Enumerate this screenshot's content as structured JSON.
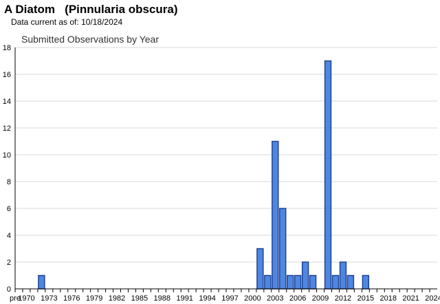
{
  "header": {
    "common_name": "A Diatom",
    "scientific_name": "(Pinnularia obscura)",
    "data_current_label": "Data current as of:",
    "data_current_date": "10/18/2024"
  },
  "colors": {
    "bar_fill": "#4f86e0",
    "bar_stroke": "#1a3f8f",
    "grid": "#d9d9d9",
    "axis": "#000000"
  },
  "chart_data": {
    "type": "bar",
    "title": "Submitted Observations by Year",
    "xlabel": "",
    "ylabel": "",
    "ylim": [
      0,
      18
    ],
    "y_ticks": [
      0,
      2,
      4,
      6,
      8,
      10,
      12,
      14,
      16,
      18
    ],
    "grid": true,
    "x_tick_labels": [
      "pre",
      "1970",
      "1973",
      "1976",
      "1979",
      "1982",
      "1985",
      "1988",
      "1991",
      "1994",
      "1997",
      "2000",
      "2003",
      "2006",
      "2009",
      "2012",
      "2015",
      "2018",
      "2021",
      "2024"
    ],
    "categories": [
      "pre",
      "1970",
      "1971",
      "1972",
      "1973",
      "1974",
      "1975",
      "1976",
      "1977",
      "1978",
      "1979",
      "1980",
      "1981",
      "1982",
      "1983",
      "1984",
      "1985",
      "1986",
      "1987",
      "1988",
      "1989",
      "1990",
      "1991",
      "1992",
      "1993",
      "1994",
      "1995",
      "1996",
      "1997",
      "1998",
      "1999",
      "2000",
      "2001",
      "2002",
      "2003",
      "2004",
      "2005",
      "2006",
      "2007",
      "2008",
      "2009",
      "2010",
      "2011",
      "2012",
      "2013",
      "2014",
      "2015",
      "2016",
      "2017",
      "2018",
      "2019",
      "2020",
      "2021",
      "2022",
      "2023",
      "2024"
    ],
    "values": [
      0,
      0,
      0,
      1,
      0,
      0,
      0,
      0,
      0,
      0,
      0,
      0,
      0,
      0,
      0,
      0,
      0,
      0,
      0,
      0,
      0,
      0,
      0,
      0,
      0,
      0,
      0,
      0,
      0,
      0,
      0,
      0,
      3,
      1,
      11,
      6,
      1,
      1,
      2,
      1,
      0,
      17,
      1,
      2,
      1,
      0,
      1,
      0,
      0,
      0,
      0,
      0,
      0,
      0,
      0,
      0
    ]
  }
}
